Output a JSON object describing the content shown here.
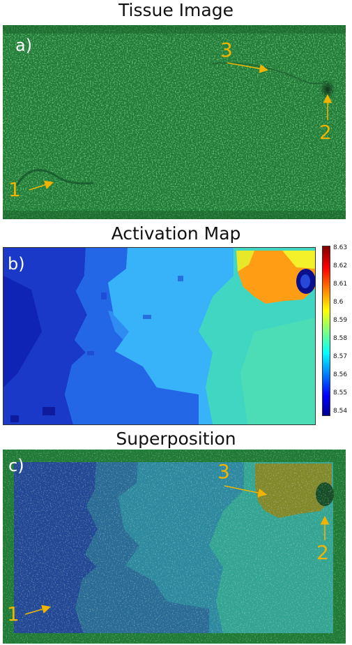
{
  "titles": {
    "tissue": "Tissue Image",
    "activation": "Activation Map",
    "superposition": "Superposition"
  },
  "panel_labels": {
    "a": "a)",
    "b": "b)",
    "c": "c)"
  },
  "annotations": {
    "one": "1",
    "two": "2",
    "three": "3"
  },
  "annotation_color": "#f0b400",
  "colorbar": {
    "colormap": "jet",
    "ticks": [
      "8.63",
      "8.62",
      "8.61",
      "8.6",
      "8.59",
      "8.58",
      "8.57",
      "8.56",
      "8.55",
      "8.54"
    ]
  }
}
